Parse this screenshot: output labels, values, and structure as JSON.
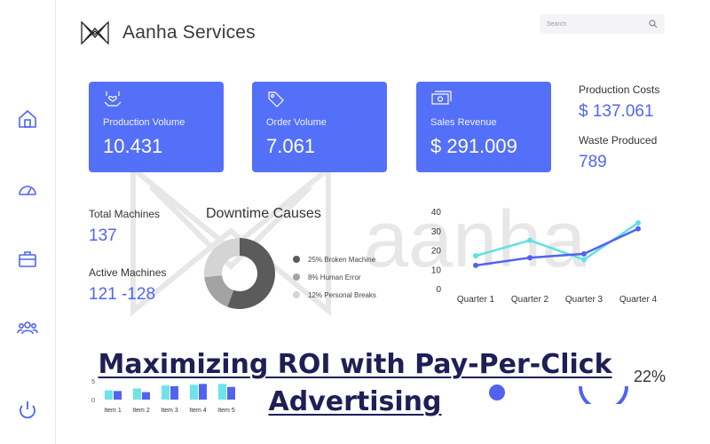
{
  "brand": {
    "title": "Aanha Services"
  },
  "search": {
    "placeholder": "Search"
  },
  "sidebar": {
    "items": [
      {
        "name": "home-icon"
      },
      {
        "name": "dashboard-gauge-icon"
      },
      {
        "name": "briefcase-icon"
      },
      {
        "name": "users-icon"
      },
      {
        "name": "power-icon"
      }
    ]
  },
  "kpis": [
    {
      "label": "Production Volume",
      "value": "10.431",
      "icon": "hand-heart-icon"
    },
    {
      "label": "Order Volume",
      "value": "7.061",
      "icon": "tag-icon"
    },
    {
      "label": "Sales Revenue",
      "value": "$ 291.009",
      "icon": "cash-icon"
    }
  ],
  "side_stats": {
    "production_costs_label": "Production Costs",
    "production_costs_value": "$ 137.061",
    "waste_label": "Waste Produced",
    "waste_value": "789"
  },
  "machines": {
    "total_label": "Total Machines",
    "total_value": "137",
    "active_label": "Active Machines",
    "active_value": "121 -128"
  },
  "watermark_text": "aanha",
  "chart_data": [
    {
      "type": "pie",
      "title": "Downtime Causes",
      "labels": [
        "25% Broken Machine",
        "8% Human Error",
        "12% Personal Breaks"
      ],
      "values": [
        25,
        8,
        12
      ],
      "colors": [
        "#5b5b5b",
        "#a3a3a3",
        "#d4d4d4"
      ],
      "legend": "right",
      "donut": true
    },
    {
      "type": "line",
      "categories": [
        "Quarter 1",
        "Quarter 2",
        "Quarter 3",
        "Quarter 4"
      ],
      "yticks": [
        "0",
        "10",
        "20",
        "30",
        "40"
      ],
      "ylim": [
        0,
        40
      ],
      "grid": false,
      "series": [
        {
          "values": [
            17,
            25,
            15,
            34
          ],
          "color": "#5ee0e6"
        },
        {
          "values": [
            12,
            16,
            18,
            31
          ],
          "color": "#5262ee"
        }
      ]
    },
    {
      "type": "bar",
      "categories": [
        "Item 1",
        "Item 2",
        "Item 3",
        "Item 4",
        "Item 5"
      ],
      "yticks": [
        "0",
        "5"
      ],
      "series": [
        {
          "values": [
            2.5,
            3.0,
            3.8,
            4.0,
            4.2
          ],
          "color": "#6fe3ea"
        },
        {
          "values": [
            2.3,
            2.0,
            3.6,
            4.2,
            3.4
          ],
          "color": "#5262ee"
        }
      ]
    }
  ],
  "overlay": {
    "title": "Maximizing ROI with Pay-Per-Click Advertising"
  },
  "bottom_stat": {
    "value": "22%"
  }
}
